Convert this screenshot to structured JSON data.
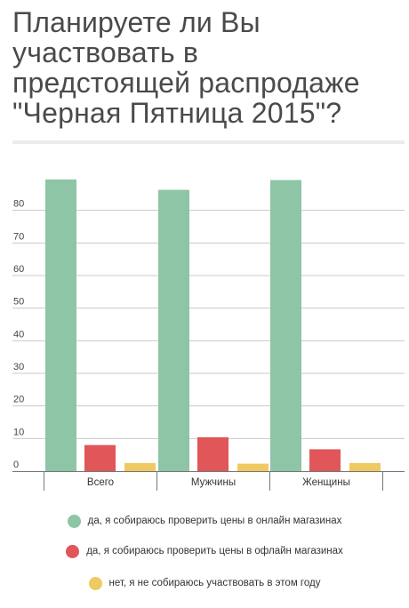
{
  "chart_data": {
    "type": "bar",
    "title": "Планируете ли Вы\nучаствовать в\nпредстоящей распродаже\n\"Черная Пятница 2015\"?",
    "xlabel": "",
    "ylabel": "",
    "categories": [
      "Всего",
      "Мужчины",
      "Женщины"
    ],
    "series": [
      {
        "name": "да, я собираюсь проверить цены в онлайн магазинах",
        "color": "#8dc5a6",
        "values": [
          89.5,
          86.3,
          89.3
        ]
      },
      {
        "name": "да, я собираюсь проверить цены в офлайн магазинах",
        "color": "#e05659",
        "values": [
          8.0,
          10.4,
          6.7
        ]
      },
      {
        "name": "нет, я не собираюсь участвовать в этом году",
        "color": "#efca62",
        "values": [
          2.5,
          2.3,
          2.5
        ]
      }
    ],
    "y_ticks": [
      "0",
      "10",
      "20",
      "30",
      "40",
      "50",
      "60",
      "70",
      "80"
    ],
    "y_tick_values": [
      0,
      10,
      20,
      30,
      40,
      50,
      60,
      70,
      80
    ],
    "ylim": [
      0,
      90
    ],
    "grid": true,
    "legend_position": "bottom"
  }
}
